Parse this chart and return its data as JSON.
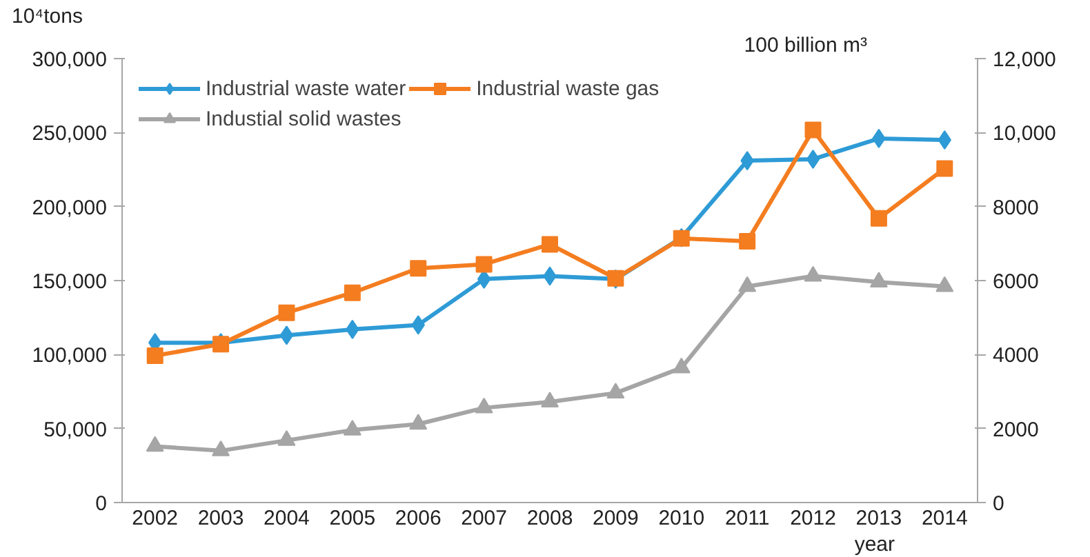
{
  "chart_data": {
    "type": "line",
    "xlabel": "year",
    "ylabel": "10⁴tons",
    "y2label": "100 billion m³",
    "categories": [
      "2002",
      "2003",
      "2004",
      "2005",
      "2006",
      "2007",
      "2008",
      "2009",
      "2010",
      "2011",
      "2012",
      "2013",
      "2014"
    ],
    "series": [
      {
        "name": "Industrial waste water",
        "color": "#2e9bd6",
        "marker": "diamond",
        "values": [
          108000,
          108000,
          113000,
          117000,
          120000,
          151000,
          153000,
          151000,
          179000,
          231000,
          232000,
          246000,
          245000
        ]
      },
      {
        "name": "Industial solid wastes",
        "color": "#a5a5a5",
        "marker": "triangle",
        "values": [
          38000,
          35000,
          42000,
          49000,
          53000,
          64000,
          68000,
          74000,
          91000,
          146000,
          153000,
          149000,
          146000
        ]
      },
      {
        "name": "Industrial waste gas",
        "color": "#f47d20",
        "marker": "square",
        "axis": "y2",
        "values": [
          3970,
          4280,
          5130,
          5670,
          6330,
          6440,
          6980,
          6060,
          7140,
          7060,
          10070,
          7680,
          9030
        ]
      }
    ],
    "ylim": [
      0,
      300000
    ],
    "yticks": [
      0,
      {
        "value": 50000,
        "label": "50,000"
      },
      {
        "value": 100000,
        "label": "100,000"
      },
      {
        "value": 150000,
        "label": "150,000"
      },
      {
        "value": 200000,
        "label": "200,000"
      },
      {
        "value": 250000,
        "label": "250,000"
      },
      {
        "value": 300000,
        "label": "300,000"
      }
    ],
    "y2lim": [
      0,
      12000
    ],
    "y2ticks": [
      0,
      2000,
      4000,
      6000,
      8000,
      {
        "value": 10000,
        "label": "10,000"
      },
      {
        "value": 12000,
        "label": "12,000"
      }
    ],
    "grid": false,
    "legend": "top left",
    "line_style": "solid"
  }
}
